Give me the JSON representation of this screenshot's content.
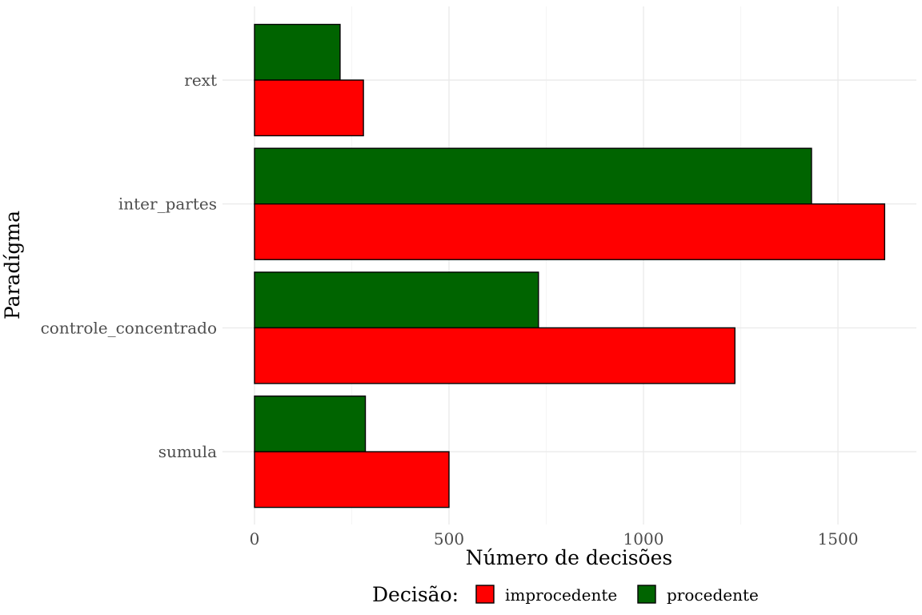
{
  "chart_data": {
    "type": "bar",
    "orientation": "horizontal",
    "categories": [
      "rext",
      "inter_partes",
      "controle_concentrado",
      "sumula"
    ],
    "series": [
      {
        "name": "improcedente",
        "color": "#ff0000",
        "values": [
          280,
          1620,
          1235,
          500
        ]
      },
      {
        "name": "procedente",
        "color": "#006400",
        "values": [
          220,
          1432,
          730,
          285
        ]
      }
    ],
    "xlabel": "Número de decisões",
    "ylabel": "Paradígma",
    "xticks": [
      0,
      500,
      1000,
      1500
    ],
    "xlim": [
      0,
      1700
    ],
    "grid": true,
    "legend": {
      "title": "Decisão:",
      "position": "bottom",
      "entries": [
        "improcedente",
        "procedente"
      ]
    }
  }
}
